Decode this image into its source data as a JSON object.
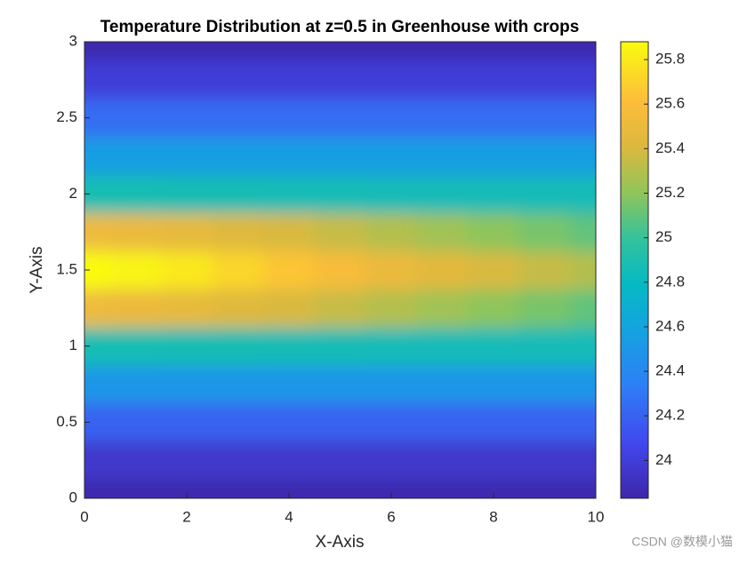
{
  "chart_data": {
    "type": "heatmap",
    "title": "Temperature Distribution at z=0.5 in Greenhouse with crops",
    "x_label": "X-Axis",
    "y_label": "Y-Axis",
    "x": [
      0,
      1,
      2,
      3,
      4,
      5,
      6,
      7,
      8,
      9,
      10
    ],
    "y": [
      0,
      0.25,
      0.5,
      0.75,
      1,
      1.25,
      1.5,
      1.75,
      2,
      2.25,
      2.5,
      2.75,
      3
    ],
    "z": [
      [
        23.85,
        23.85,
        23.85,
        23.85,
        23.85,
        23.85,
        23.85,
        23.85,
        23.85,
        23.85,
        23.85
      ],
      [
        23.95,
        23.95,
        23.95,
        23.95,
        23.95,
        23.95,
        23.95,
        23.95,
        23.95,
        23.95,
        23.95
      ],
      [
        24.2,
        24.2,
        24.2,
        24.2,
        24.2,
        24.2,
        24.2,
        24.2,
        24.2,
        24.2,
        24.2
      ],
      [
        24.5,
        24.5,
        24.5,
        24.5,
        24.5,
        24.5,
        24.5,
        24.5,
        24.5,
        24.5,
        24.5
      ],
      [
        24.88,
        24.88,
        24.87,
        24.87,
        24.86,
        24.86,
        24.85,
        24.85,
        24.85,
        24.85,
        24.85
      ],
      [
        25.52,
        25.5,
        25.47,
        25.43,
        25.4,
        25.35,
        25.3,
        25.25,
        25.2,
        25.15,
        25.1
      ],
      [
        25.88,
        25.85,
        25.8,
        25.72,
        25.65,
        25.58,
        25.5,
        25.45,
        25.4,
        25.35,
        25.3
      ],
      [
        25.52,
        25.5,
        25.47,
        25.43,
        25.4,
        25.35,
        25.3,
        25.25,
        25.2,
        25.15,
        25.1
      ],
      [
        24.88,
        24.88,
        24.87,
        24.87,
        24.86,
        24.86,
        24.85,
        24.85,
        24.85,
        24.85,
        24.85
      ],
      [
        24.55,
        24.55,
        24.55,
        24.55,
        24.55,
        24.55,
        24.55,
        24.55,
        24.55,
        24.55,
        24.55
      ],
      [
        24.25,
        24.25,
        24.25,
        24.25,
        24.25,
        24.25,
        24.25,
        24.25,
        24.25,
        24.25,
        24.25
      ],
      [
        24.0,
        24.0,
        24.0,
        24.0,
        24.0,
        24.0,
        24.0,
        24.0,
        24.0,
        24.0,
        24.0
      ],
      [
        23.85,
        23.85,
        23.85,
        23.85,
        23.85,
        23.85,
        23.85,
        23.85,
        23.85,
        23.85,
        23.85
      ]
    ],
    "xlim": [
      0,
      10
    ],
    "xticks": [
      0,
      2,
      4,
      6,
      8,
      10
    ],
    "ylim": [
      0,
      3
    ],
    "yticks": [
      0,
      0.5,
      1,
      1.5,
      2,
      2.5,
      3
    ],
    "clim": [
      23.83,
      25.88
    ],
    "cticks": [
      24,
      24.2,
      24.4,
      24.6,
      24.8,
      25,
      25.2,
      25.4,
      25.6,
      25.8
    ],
    "colormap": [
      [
        0,
        "#3e26a8"
      ],
      [
        0.12,
        "#4148ee"
      ],
      [
        0.25,
        "#2d80f5"
      ],
      [
        0.37,
        "#14a3df"
      ],
      [
        0.47,
        "#05b9c2"
      ],
      [
        0.57,
        "#35c29b"
      ],
      [
        0.67,
        "#90c55a"
      ],
      [
        0.77,
        "#dcb83e"
      ],
      [
        0.87,
        "#fdbd3b"
      ],
      [
        1,
        "#f9fb0e"
      ]
    ],
    "watermark": "CSDN @数模小猫"
  }
}
